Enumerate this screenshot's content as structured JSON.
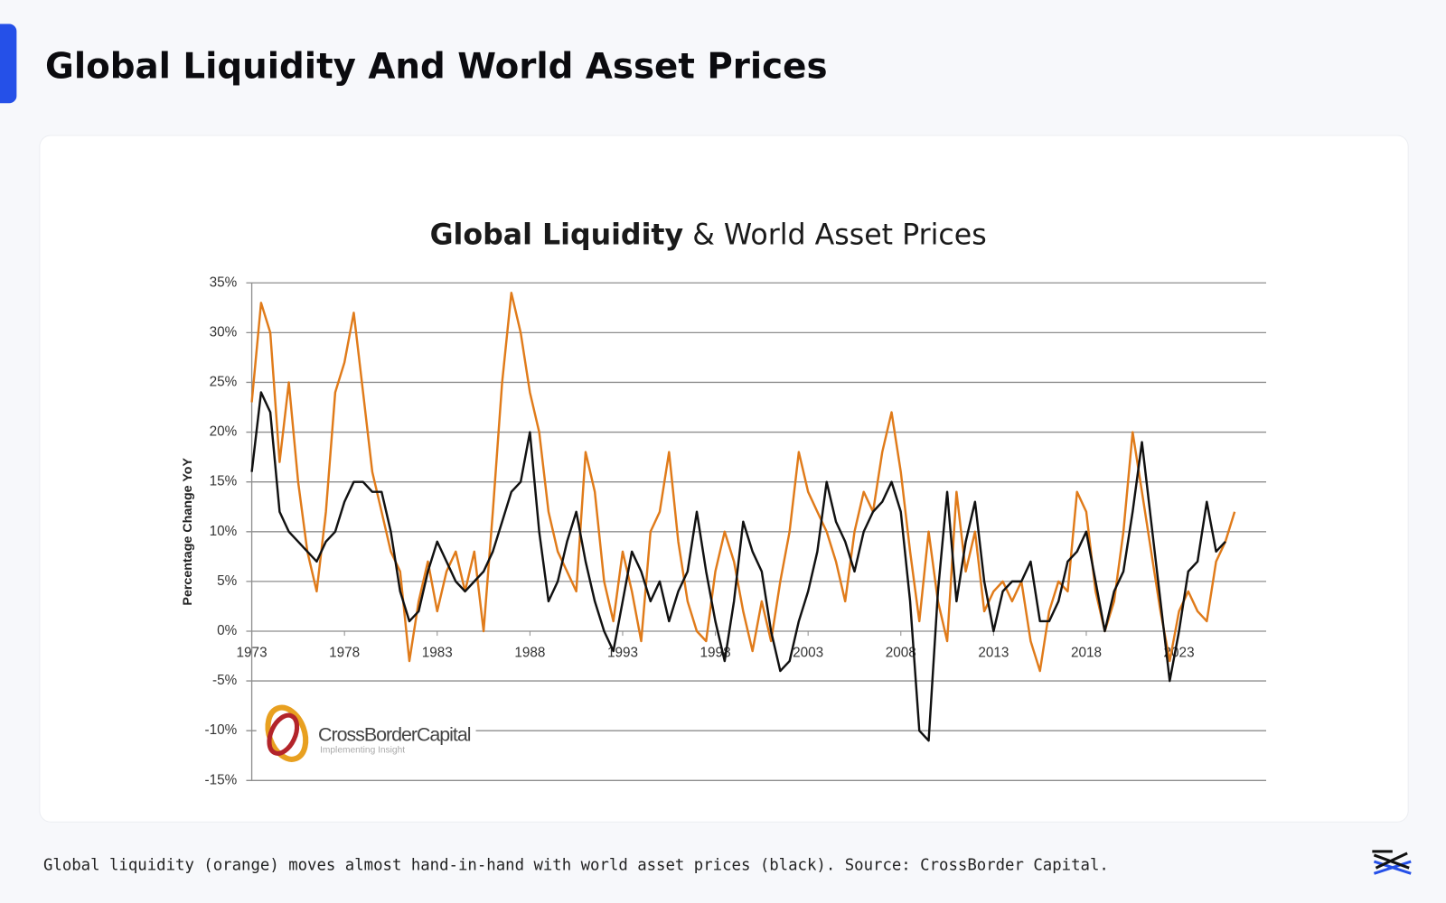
{
  "header": {
    "title": "Global Liquidity And World Asset Prices"
  },
  "chart_data": {
    "type": "line",
    "title": [
      "Global Liquidity",
      "& World Asset Prices"
    ],
    "y_label": "Percentage Change YoY",
    "logo": {
      "name": "CrossBorderCapital",
      "tagline": "Implementing Insight"
    },
    "xlim": [
      1973,
      2027.7
    ],
    "xticks": [
      1973,
      1978,
      1983,
      1988,
      1993,
      1998,
      2003,
      2008,
      2013,
      2018,
      2023
    ],
    "ylim": [
      -15,
      35
    ],
    "yticks": [
      {
        "value": 35,
        "label": "35%"
      },
      {
        "value": 30,
        "label": "30%"
      },
      {
        "value": 25,
        "label": "25%"
      },
      {
        "value": 20,
        "label": "20%"
      },
      {
        "value": 15,
        "label": "15%"
      },
      {
        "value": 10,
        "label": "10%"
      },
      {
        "value": 5,
        "label": "5%"
      },
      {
        "value": 0,
        "label": "0%"
      },
      {
        "value": -5,
        "label": "-5%"
      },
      {
        "value": -10,
        "label": "-10%"
      },
      {
        "value": -15,
        "label": "-15%"
      }
    ],
    "grid": true,
    "x": [
      1973,
      1973.5,
      1974,
      1974.5,
      1975,
      1975.5,
      1976,
      1976.5,
      1977,
      1977.5,
      1978,
      1978.5,
      1979,
      1979.5,
      1980,
      1980.5,
      1981,
      1981.5,
      1982,
      1982.5,
      1983,
      1983.5,
      1984,
      1984.5,
      1985,
      1985.5,
      1986,
      1986.5,
      1987,
      1987.5,
      1988,
      1988.5,
      1989,
      1989.5,
      1990,
      1990.5,
      1991,
      1991.5,
      1992,
      1992.5,
      1993,
      1993.5,
      1994,
      1994.5,
      1995,
      1995.5,
      1996,
      1996.5,
      1997,
      1997.5,
      1998,
      1998.5,
      1999,
      1999.5,
      2000,
      2000.5,
      2001,
      2001.5,
      2002,
      2002.5,
      2003,
      2003.5,
      2004,
      2004.5,
      2005,
      2005.5,
      2006,
      2006.5,
      2007,
      2007.5,
      2008,
      2008.5,
      2009,
      2009.5,
      2010,
      2010.5,
      2011,
      2011.5,
      2012,
      2012.5,
      2013,
      2013.5,
      2014,
      2014.5,
      2015,
      2015.5,
      2016,
      2016.5,
      2017,
      2017.5,
      2018,
      2018.5,
      2019,
      2019.5,
      2020,
      2020.5,
      2021,
      2021.5,
      2022,
      2022.5,
      2023,
      2023.5,
      2024,
      2024.5,
      2025,
      2025.5,
      2026
    ],
    "series": [
      {
        "color": "#e07b1a",
        "values": [
          23,
          33,
          30,
          17,
          25,
          15,
          8,
          4,
          12,
          24,
          27,
          32,
          24,
          16,
          12,
          8,
          6,
          -3,
          3,
          7,
          2,
          6,
          8,
          4,
          8,
          0,
          12,
          25,
          34,
          30,
          24,
          20,
          12,
          8,
          6,
          4,
          18,
          14,
          5,
          1,
          8,
          4,
          -1,
          10,
          12,
          18,
          9,
          3,
          0,
          -1,
          6,
          10,
          7,
          2,
          -2,
          3,
          -1,
          5,
          10,
          18,
          14,
          12,
          10,
          7,
          3,
          10,
          14,
          12,
          18,
          22,
          16,
          8,
          1,
          10,
          3,
          -1,
          14,
          6,
          10,
          2,
          4,
          5,
          3,
          5,
          -1,
          -4,
          2,
          5,
          4,
          14,
          12,
          4,
          0,
          3,
          10,
          20,
          14,
          8,
          2,
          -3,
          2,
          4,
          2,
          1,
          7,
          9,
          12
        ]
      },
      {
        "color": "#111111",
        "values": [
          16,
          24,
          22,
          12,
          10,
          9,
          8,
          7,
          9,
          10,
          13,
          15,
          15,
          14,
          14,
          10,
          4,
          1,
          2,
          6,
          9,
          7,
          5,
          4,
          5,
          6,
          8,
          11,
          14,
          15,
          20,
          10,
          3,
          5,
          9,
          12,
          7,
          3,
          0,
          -2,
          3,
          8,
          6,
          3,
          5,
          1,
          4,
          6,
          12,
          6,
          1,
          -3,
          3,
          11,
          8,
          6,
          0,
          -4,
          -3,
          1,
          4,
          8,
          15,
          11,
          9,
          6,
          10,
          12,
          13,
          15,
          12,
          3,
          -10,
          -11,
          4,
          14,
          3,
          9,
          13,
          5,
          0,
          4,
          5,
          5,
          7,
          1,
          1,
          3,
          7,
          8,
          10,
          5,
          0,
          4,
          6,
          12,
          19,
          11,
          3,
          -5,
          0,
          6,
          7,
          13,
          8,
          9,
          null
        ]
      }
    ]
  },
  "caption": "Global liquidity (orange) moves almost hand-in-hand with world asset prices (black). Source: CrossBorder Capital."
}
